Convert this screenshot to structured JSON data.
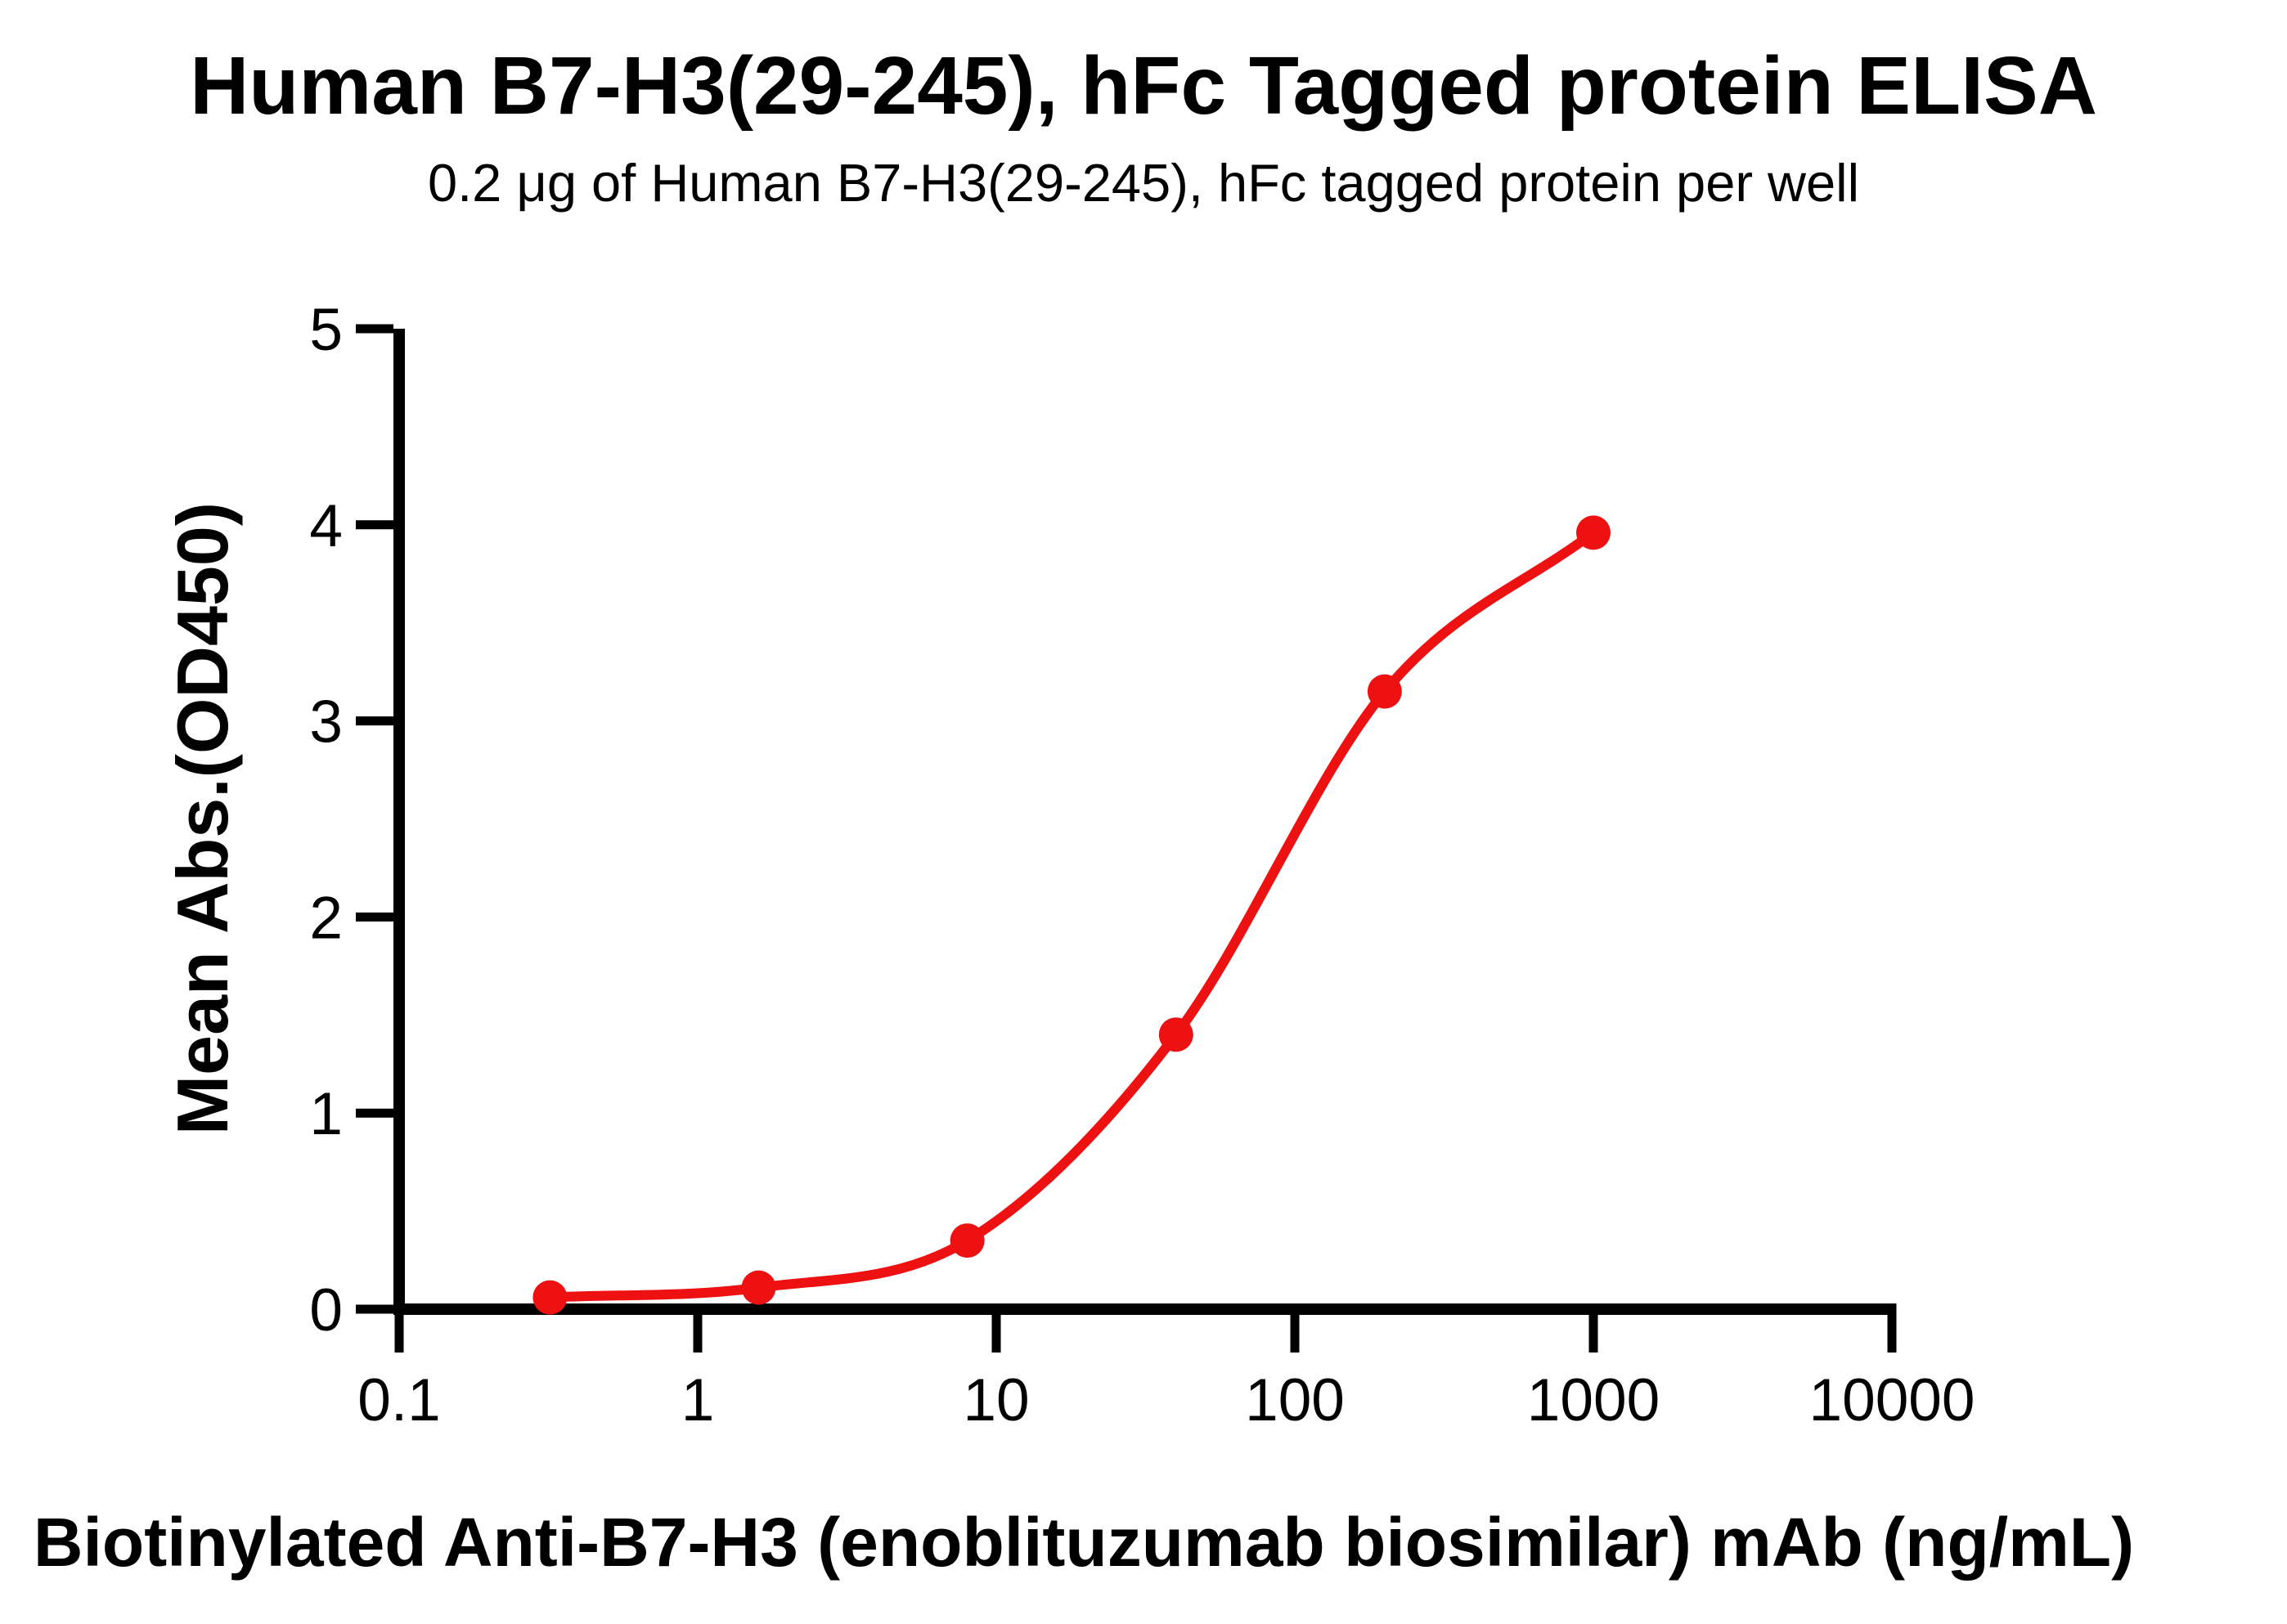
{
  "chart_data": {
    "type": "line",
    "title": "Human B7-H3(29-245), hFc Tagged protein ELISA",
    "subtitle": "0.2 μg of Human B7-H3(29-245), hFc tagged protein per well",
    "xlabel": "Biotinylated Anti-B7-H3 (enoblituzumab biosimilar) mAb (ng/mL)",
    "ylabel": "Mean Abs.(OD450)",
    "x_scale": "log10",
    "xlim": [
      0.1,
      10000
    ],
    "ylim": [
      0,
      5
    ],
    "x_ticks": [
      "0.1",
      "1",
      "10",
      "100",
      "1000",
      "10000"
    ],
    "y_ticks": [
      "0",
      "1",
      "2",
      "3",
      "4",
      "5"
    ],
    "grid": false,
    "legend_position": "none",
    "series": [
      {
        "name": "Human B7-H3(29-245), hFc tagged protein",
        "color": "#ee1111",
        "marker": "circle",
        "x": [
          0.32,
          1.6,
          8,
          40,
          200,
          1000
        ],
        "y": [
          0.06,
          0.11,
          0.35,
          1.4,
          3.15,
          3.96
        ]
      }
    ],
    "axis_color": "#000000",
    "background_color": "#ffffff"
  }
}
